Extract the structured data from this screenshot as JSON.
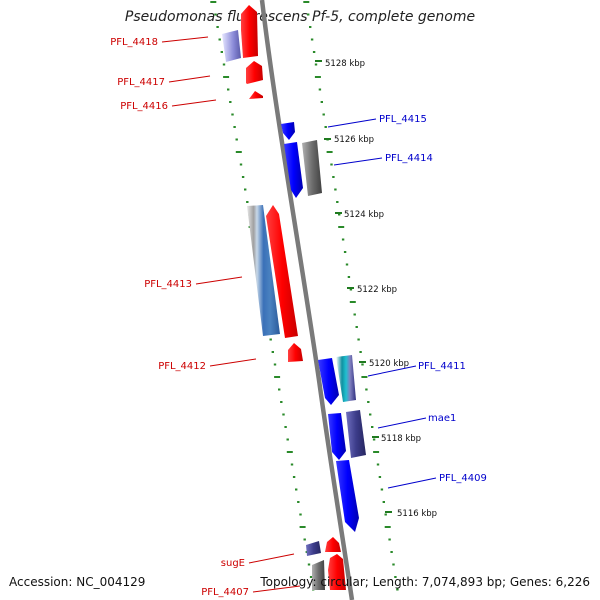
{
  "title": "Pseudomonas fluorescens Pf-5, complete genome",
  "footer": {
    "accession": "Accession: NC_004129",
    "topology": "Topology: circular; Length: 7,074,893 bp; Genes: 6,226"
  },
  "scale_labels": [
    "5128 kbp",
    "5126 kbp",
    "5124 kbp",
    "5122 kbp",
    "5120 kbp",
    "5118 kbp",
    "5116 kbp"
  ],
  "genes": {
    "reverse": [
      {
        "label": "PFL_4418",
        "color": "#cc0000"
      },
      {
        "label": "PFL_4417",
        "color": "#cc0000"
      },
      {
        "label": "PFL_4416",
        "color": "#cc0000"
      },
      {
        "label": "PFL_4413",
        "color": "#cc0000"
      },
      {
        "label": "PFL_4412",
        "color": "#cc0000"
      },
      {
        "label": "sugE",
        "color": "#cc0000"
      },
      {
        "label": "PFL_4407",
        "color": "#cc0000"
      }
    ],
    "forward": [
      {
        "label": "PFL_4415",
        "color": "#0000cc"
      },
      {
        "label": "PFL_4414",
        "color": "#0000cc"
      },
      {
        "label": "PFL_4411",
        "color": "#0000cc"
      },
      {
        "label": "mae1",
        "color": "#0000cc"
      },
      {
        "label": "PFL_4409",
        "color": "#0000cc"
      }
    ]
  },
  "colors": {
    "backbone": "#808080",
    "tick": "#2a8a2a",
    "reverse_feature": "#ff0000",
    "forward_feature": "#0000ff",
    "annotation_gray": "#777777"
  }
}
